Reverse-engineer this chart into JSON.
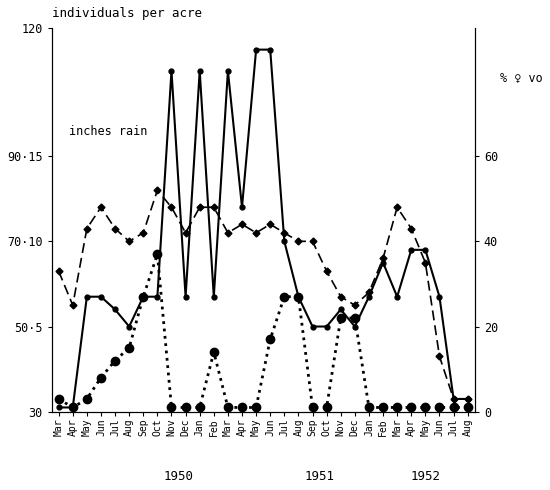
{
  "months": [
    "Mar",
    "Apr",
    "May",
    "Jun",
    "Jul",
    "Aug",
    "Sep",
    "Oct",
    "Nov",
    "Dec",
    "Jan",
    "Feb",
    "Mar",
    "Apr",
    "May",
    "Jun",
    "Jul",
    "Aug",
    "Sep",
    "Oct",
    "Nov",
    "Dec",
    "Jan",
    "Feb",
    "Mar",
    "Apr",
    "May",
    "Jun",
    "Jul",
    "Aug"
  ],
  "year_label_positions": [
    [
      8.5,
      "1950"
    ],
    [
      18.5,
      "1951"
    ],
    [
      26.0,
      "1952"
    ]
  ],
  "ylim": [
    30,
    120
  ],
  "yticks_left": [
    30,
    50,
    70,
    90,
    120
  ],
  "ytick_labels_left": [
    "30",
    "50·5",
    "70·10",
    "90·15",
    "120"
  ],
  "yticks_right": [
    30,
    50,
    70,
    90
  ],
  "ytick_labels_right": [
    "0",
    "20",
    "40",
    "60"
  ],
  "density": [
    31,
    31,
    57,
    57,
    54,
    50,
    57,
    57,
    110,
    57,
    110,
    57,
    110,
    78,
    115,
    115,
    70,
    57,
    50,
    50,
    54,
    50,
    57,
    65,
    57,
    68,
    68,
    57,
    33,
    33
  ],
  "repro": [
    63,
    55,
    73,
    78,
    73,
    70,
    72,
    82,
    78,
    72,
    78,
    78,
    72,
    74,
    72,
    74,
    72,
    70,
    70,
    63,
    57,
    55,
    58,
    66,
    78,
    73,
    65,
    43,
    33,
    33
  ],
  "rain": [
    33,
    31,
    33,
    38,
    42,
    45,
    57,
    67,
    31,
    31,
    31,
    44,
    31,
    31,
    31,
    47,
    57,
    57,
    31,
    31,
    52,
    52,
    31,
    31,
    31,
    31,
    31,
    31,
    31,
    31
  ],
  "title": "individuals per acre",
  "label_inches_rain": "inches rain",
  "ylabel_right": "% ♀ vo",
  "background": "#ffffff"
}
